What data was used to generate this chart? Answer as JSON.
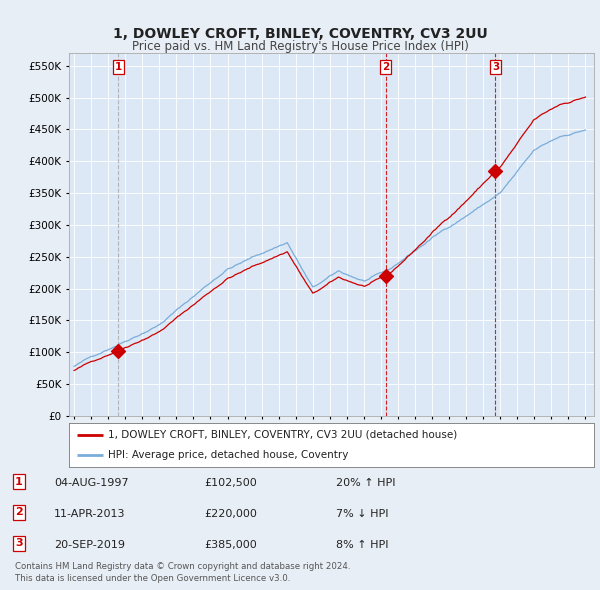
{
  "title": "1, DOWLEY CROFT, BINLEY, COVENTRY, CV3 2UU",
  "subtitle": "Price paid vs. HM Land Registry's House Price Index (HPI)",
  "title_fontsize": 10,
  "subtitle_fontsize": 8.5,
  "background_color": "#e8eef5",
  "plot_bg_color": "#dce8f5",
  "sale_color": "#cc0000",
  "hpi_color": "#7aadda",
  "sale_label": "1, DOWLEY CROFT, BINLEY, COVENTRY, CV3 2UU (detached house)",
  "hpi_label": "HPI: Average price, detached house, Coventry",
  "sales": [
    {
      "label": "1",
      "date": "04-AUG-1997",
      "price": 102500,
      "hpi_note": "20% ↑ HPI",
      "x": 1997.58
    },
    {
      "label": "2",
      "date": "11-APR-2013",
      "price": 220000,
      "hpi_note": "7% ↓ HPI",
      "x": 2013.27
    },
    {
      "label": "3",
      "date": "20-SEP-2019",
      "price": 385000,
      "hpi_note": "8% ↑ HPI",
      "x": 2019.72
    }
  ],
  "sale1_vline_color": "#aaaaaa",
  "sale2_vline_color": "#cc0000",
  "sale3_vline_color": "#cc0000",
  "footer_lines": [
    "Contains HM Land Registry data © Crown copyright and database right 2024.",
    "This data is licensed under the Open Government Licence v3.0."
  ],
  "ylim": [
    0,
    570000
  ],
  "yticks": [
    0,
    50000,
    100000,
    150000,
    200000,
    250000,
    300000,
    350000,
    400000,
    450000,
    500000,
    550000
  ],
  "xlim": [
    1994.7,
    2025.5
  ]
}
